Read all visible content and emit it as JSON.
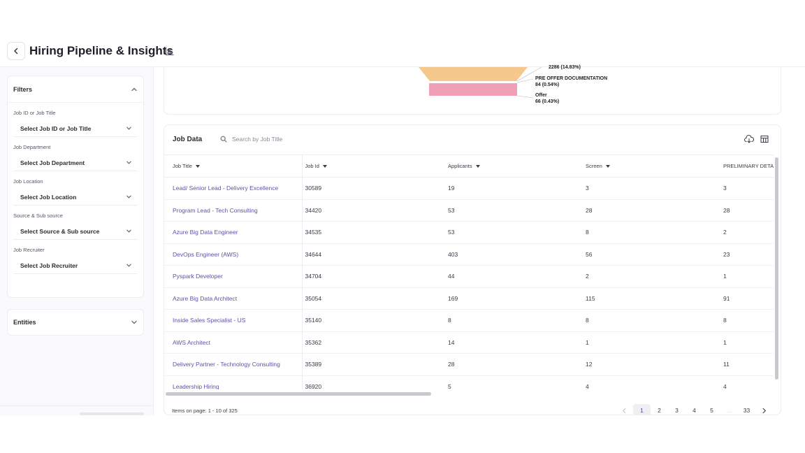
{
  "header": {
    "title": "Hiring Pipeline & Insights"
  },
  "filters": {
    "heading": "Filters",
    "items": [
      {
        "label": "Job ID or Job Title",
        "value": "Select Job ID or Job Title"
      },
      {
        "label": "Job Department",
        "value": "Select Job Department"
      },
      {
        "label": "Job Location",
        "value": "Select Job Location"
      },
      {
        "label": "Source & Sub source",
        "value": "Select Source & Sub source"
      },
      {
        "label": "Job Recruiter",
        "value": "Select Job Recruiter"
      }
    ],
    "entities_label": "Entities"
  },
  "funnel": {
    "stages": [
      {
        "name": "",
        "value": "2286 (14.83%)",
        "color": "#f5c88e"
      },
      {
        "name": "PRE OFFER DOCUMENTATION",
        "value": "84 (0.54%)",
        "color": "#f5c88e"
      },
      {
        "name": "Offer",
        "value": "66 (0.43%)",
        "color": "#ef9fb6"
      }
    ]
  },
  "job_data": {
    "title": "Job Data",
    "search_placeholder": "Search by Job Title",
    "columns": [
      "Job Title",
      "Job Id",
      "Applicants",
      "Screen",
      "PRELIMINARY DETAIL"
    ],
    "rows": [
      [
        "Lead/ Senior Lead - Delivery Excellence",
        "30589",
        "19",
        "3",
        "3"
      ],
      [
        "Program Lead - Tech Consulting",
        "34420",
        "53",
        "28",
        "28"
      ],
      [
        "Azure Big Data Engineer",
        "34535",
        "53",
        "8",
        "2"
      ],
      [
        "DevOps Engineer (AWS)",
        "34644",
        "403",
        "56",
        "23"
      ],
      [
        "Pyspark Developer",
        "34704",
        "44",
        "2",
        "1"
      ],
      [
        "Azure Big Data Architect",
        "35054",
        "169",
        "115",
        "91"
      ],
      [
        "Inside Sales Specialist - US",
        "35140",
        "8",
        "8",
        "8"
      ],
      [
        "AWS Architect",
        "35362",
        "14",
        "1",
        "1"
      ],
      [
        "Delivery Partner - Technology Consulting",
        "35389",
        "28",
        "12",
        "11"
      ],
      [
        "Leadership Hiring",
        "36920",
        "5",
        "4",
        "4"
      ]
    ]
  },
  "pagination": {
    "items_text": "Items on page: 1 - 10 of 325",
    "pages": [
      "1",
      "2",
      "3",
      "4",
      "5",
      "...",
      "33"
    ],
    "current": "1"
  },
  "colors": {
    "accent": "#5a54a8",
    "funnel_orange": "#f5c88e",
    "funnel_pink": "#ef9fb6"
  }
}
